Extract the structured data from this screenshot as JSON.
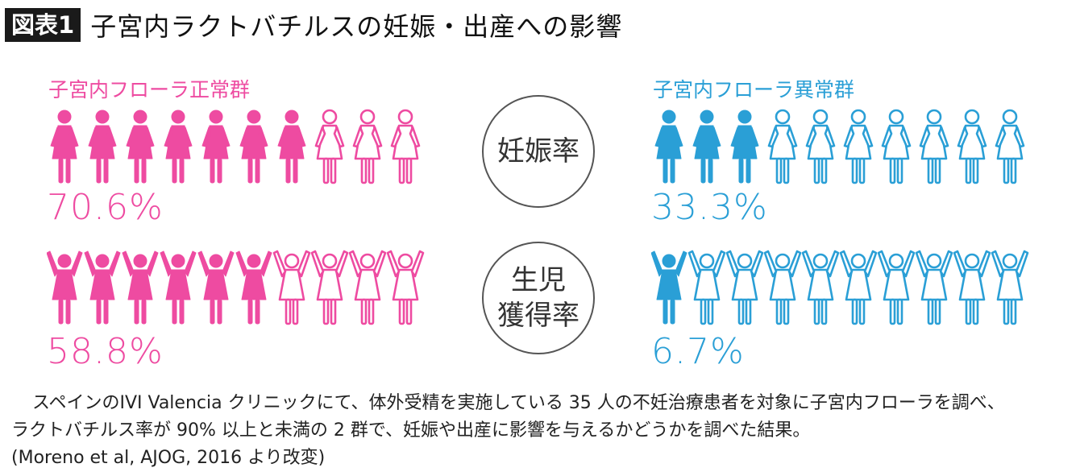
{
  "header": {
    "badge": "図表1",
    "title": "子宮内ラクトバチルスの妊娠・出産への影響"
  },
  "colors": {
    "normal": "#ee4ba1",
    "abnormal": "#2a9fd6"
  },
  "icons": {
    "pregnancy": "woman-standing-icon",
    "birth": "woman-arms-raised-icon"
  },
  "groups": {
    "normal_label": "子宮内フローラ正常群",
    "abnormal_label": "子宮内フローラ異常群"
  },
  "metrics": {
    "pregnancy_label": "妊娠率",
    "birth_label_line1": "生児",
    "birth_label_line2": "獲得率"
  },
  "chart_data": {
    "type": "pictogram",
    "icons_per_row": 10,
    "categories": [
      "妊娠率",
      "生児獲得率"
    ],
    "series": [
      {
        "name": "子宮内フローラ正常群",
        "values": [
          70.6,
          58.8
        ],
        "labels": [
          "70.6%",
          "58.8%"
        ],
        "filled_icons": [
          7,
          6
        ]
      },
      {
        "name": "子宮内フローラ異常群",
        "values": [
          33.3,
          6.7
        ],
        "labels": [
          "33.3%",
          "6.7%"
        ],
        "filled_icons": [
          3,
          1
        ]
      }
    ]
  },
  "footnote": {
    "line1": "スペインのIVI Valencia クリニックにて、体外受精を実施している 35 人の不妊治療患者を対象に子宮内フローラを調べ、",
    "line2": "ラクトバチルス率が 90% 以上と未満の 2 群で、妊娠や出産に影響を与えるかどうかを調べた結果。",
    "line3": "(Moreno et al, AJOG, 2016 より改変)"
  }
}
